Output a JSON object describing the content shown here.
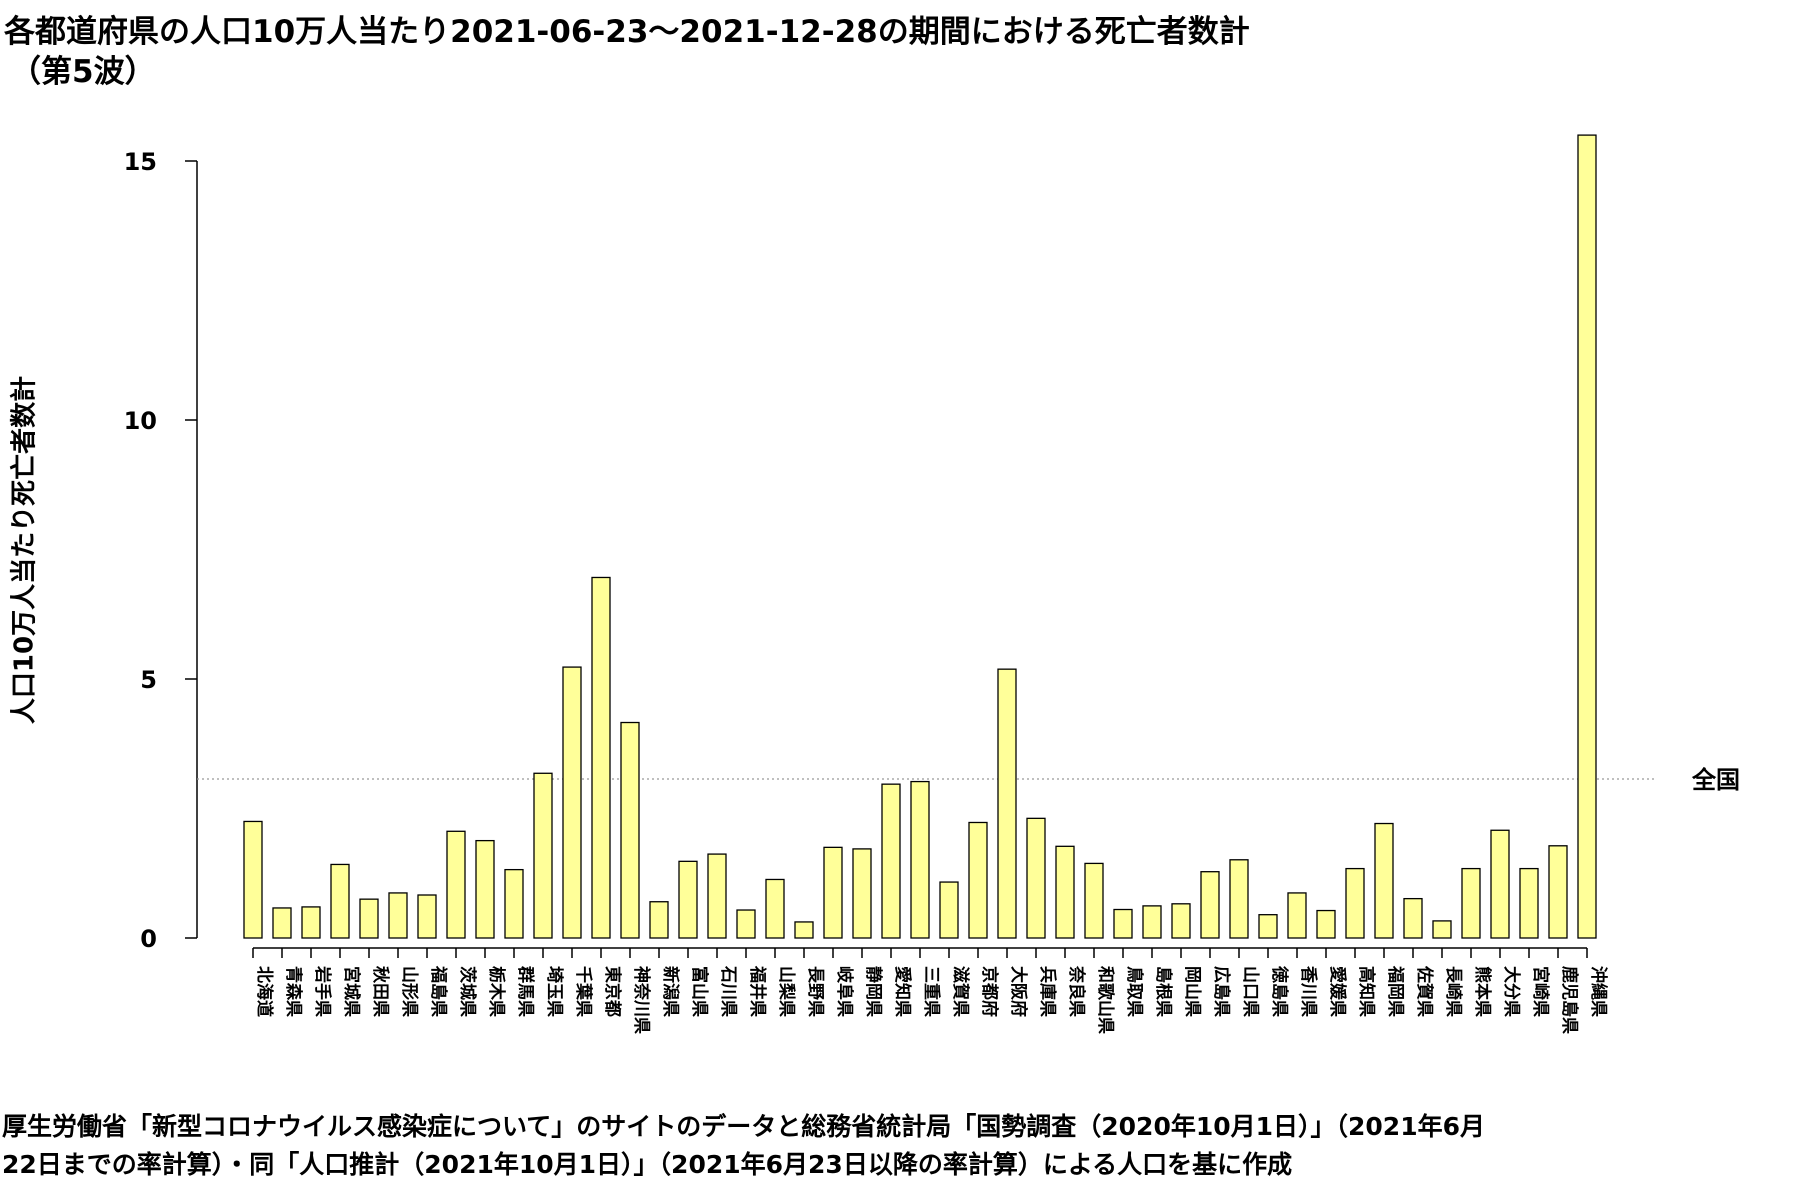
{
  "chart_data": {
    "type": "bar",
    "title": "各都道府県の人口10万人当たり2021-06-23〜2021-12-28の期間における死亡者数計",
    "subtitle": "（第5波）",
    "ylabel": "人口10万人当たり死亡者数計",
    "xlabel": "",
    "ylim": [
      0,
      15.5
    ],
    "yticks": [
      0,
      5,
      10,
      15
    ],
    "grid": false,
    "bar_color": "#ffff99",
    "bar_stroke": "#000000",
    "reference_line": {
      "label": "全国",
      "value": 3.07,
      "color": "#999999",
      "style": "dotted"
    },
    "categories": [
      "北海道",
      "青森県",
      "岩手県",
      "宮城県",
      "秋田県",
      "山形県",
      "福島県",
      "茨城県",
      "栃木県",
      "群馬県",
      "埼玉県",
      "千葉県",
      "東京都",
      "神奈川県",
      "新潟県",
      "富山県",
      "石川県",
      "福井県",
      "山梨県",
      "長野県",
      "岐阜県",
      "静岡県",
      "愛知県",
      "三重県",
      "滋賀県",
      "京都府",
      "大阪府",
      "兵庫県",
      "奈良県",
      "和歌山県",
      "鳥取県",
      "島根県",
      "岡山県",
      "広島県",
      "山口県",
      "徳島県",
      "香川県",
      "愛媛県",
      "高知県",
      "福岡県",
      "佐賀県",
      "長崎県",
      "熊本県",
      "大分県",
      "宮崎県",
      "鹿児島県",
      "沖縄県"
    ],
    "values": [
      2.25,
      0.58,
      0.6,
      1.42,
      0.75,
      0.87,
      0.83,
      2.06,
      1.88,
      1.32,
      3.18,
      5.23,
      6.96,
      4.16,
      0.7,
      1.48,
      1.62,
      0.54,
      1.13,
      0.31,
      1.75,
      1.72,
      2.97,
      3.02,
      1.08,
      2.23,
      5.19,
      2.31,
      1.77,
      1.44,
      0.55,
      0.62,
      0.66,
      1.28,
      1.51,
      0.45,
      0.87,
      0.53,
      1.34,
      2.21,
      0.76,
      0.33,
      1.34,
      2.08,
      1.34,
      1.78,
      15.5
    ]
  },
  "footer": {
    "line1": "厚生労働省「新型コロナウイルス感染症について」のサイトのデータと総務省統計局「国勢調査（2020年10月1日）」（2021年6月",
    "line2": "22日までの率計算）・同「人口推計（2021年10月1日）」（2021年6月23日以降の率計算）による人口を基に作成"
  }
}
